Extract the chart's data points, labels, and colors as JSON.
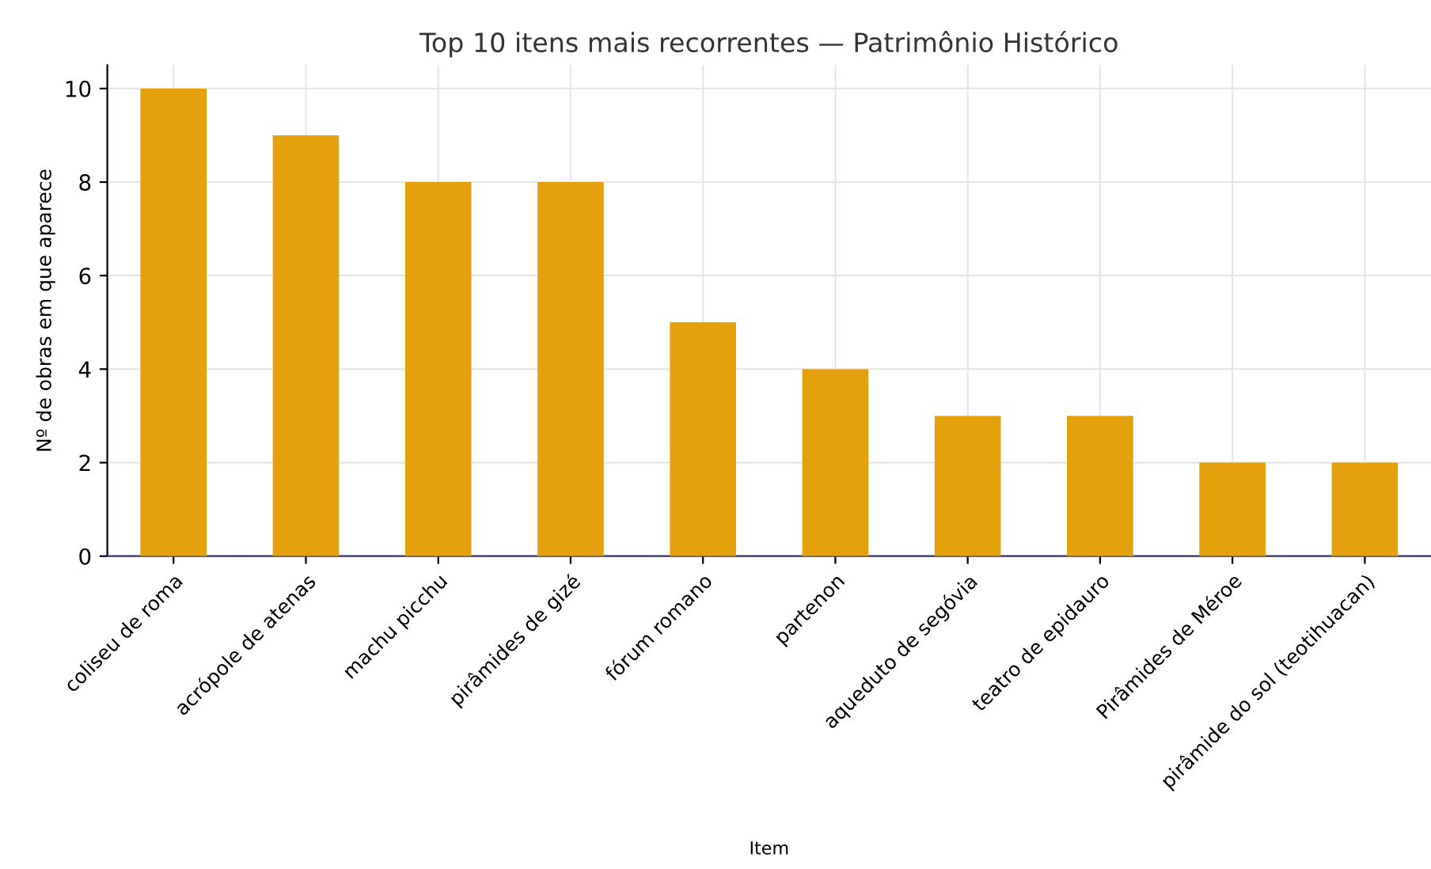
{
  "chart_data": {
    "type": "bar",
    "title": "Top 10 itens mais recorrentes — Patrimônio Histórico",
    "xlabel": "Item",
    "ylabel": "Nº de obras em que aparece",
    "categories": [
      "coliseu de roma",
      "acrópole de atenas",
      "machu picchu",
      "pirâmides de gizé",
      "fórum romano",
      "partenon",
      "aqueduto de segóvia",
      "teatro de epidauro",
      "Pirâmides de Méroe",
      "pirâmide do sol (teotihuacan)"
    ],
    "values": [
      10,
      9,
      8,
      8,
      5,
      4,
      3,
      3,
      2,
      2
    ],
    "color": "#e5a00d",
    "ylim": [
      0,
      10.5
    ],
    "yticks": [
      0,
      2,
      4,
      6,
      8,
      10
    ],
    "grid": true,
    "legend": false
  }
}
